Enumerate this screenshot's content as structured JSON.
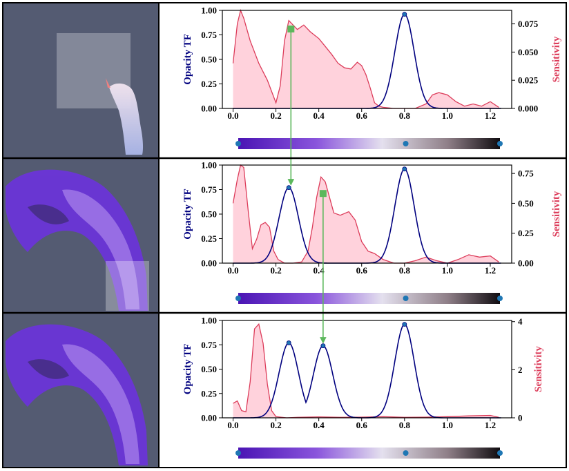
{
  "colors": {
    "opacity": "#00007f",
    "sensitivity": "#dc3c5a",
    "sensitivity_fill": "#ffd2dc",
    "arrow": "#5cb85c",
    "point": "#1f77b4",
    "render_bg": "#545b72"
  },
  "left_panel_icons": [
    "render-smoke-plume-top",
    "render-smoke-plume-middle",
    "render-smoke-plume-bottom"
  ],
  "chart_data": [
    {
      "type": "line",
      "x_ticks": [
        "0.0",
        "0.2",
        "0.4",
        "0.6",
        "0.8",
        "1.0",
        "1.2"
      ],
      "xlim": [
        -0.05,
        1.3
      ],
      "ylabel": "Opacity TF",
      "y_ticks": [
        "0.00",
        "0.25",
        "0.50",
        "0.75",
        "1.00"
      ],
      "ylim": [
        0,
        1
      ],
      "ylabel2": "Sensitivity",
      "y2_ticks": [
        "0.000",
        "0.025",
        "0.050",
        "0.075"
      ],
      "y2_tick_values": [
        0,
        0.025,
        0.05,
        0.075
      ],
      "y2lim": [
        0,
        0.087
      ],
      "opacity_peaks": [
        {
          "center": 0.8,
          "height": 0.96,
          "width": 0.045
        }
      ],
      "control_points": [
        {
          "x": 0.8,
          "y": 0.96
        }
      ],
      "sensitivity": {
        "x": [
          0.0,
          0.02,
          0.035,
          0.05,
          0.08,
          0.12,
          0.16,
          0.2,
          0.22,
          0.24,
          0.26,
          0.28,
          0.3,
          0.33,
          0.36,
          0.4,
          0.43,
          0.46,
          0.49,
          0.52,
          0.55,
          0.58,
          0.6,
          0.62,
          0.64,
          0.66,
          0.68,
          0.7,
          0.75,
          0.8,
          0.85,
          0.9,
          0.93,
          0.96,
          1.0,
          1.04,
          1.08,
          1.12,
          1.16,
          1.2,
          1.24
        ],
        "y": [
          0.04,
          0.075,
          0.087,
          0.08,
          0.06,
          0.04,
          0.025,
          0.005,
          0.02,
          0.06,
          0.078,
          0.074,
          0.07,
          0.074,
          0.068,
          0.062,
          0.055,
          0.048,
          0.04,
          0.036,
          0.035,
          0.041,
          0.038,
          0.03,
          0.018,
          0.005,
          0.002,
          0.001,
          0.0,
          0.0,
          0.0,
          0.004,
          0.012,
          0.014,
          0.012,
          0.006,
          0.002,
          0.004,
          0.002,
          0.006,
          0.001
        ]
      },
      "colorbar_points": [
        0.0,
        0.8,
        1.25
      ]
    },
    {
      "type": "line",
      "x_ticks": [
        "0.0",
        "0.2",
        "0.4",
        "0.6",
        "0.8",
        "1.0",
        "1.2"
      ],
      "xlim": [
        -0.05,
        1.3
      ],
      "ylabel": "Opacity TF",
      "y_ticks": [
        "0.00",
        "0.25",
        "0.50",
        "0.75",
        "1.00"
      ],
      "ylim": [
        0,
        1
      ],
      "ylabel2": "Sensitivity",
      "y2_ticks": [
        "0.00",
        "0.25",
        "0.50",
        "0.75"
      ],
      "y2_tick_values": [
        0,
        0.25,
        0.5,
        0.75
      ],
      "y2lim": [
        0,
        0.82
      ],
      "opacity_peaks": [
        {
          "center": 0.26,
          "height": 0.77,
          "width": 0.045
        },
        {
          "center": 0.8,
          "height": 0.96,
          "width": 0.045
        }
      ],
      "control_points": [
        {
          "x": 0.26,
          "y": 0.77
        },
        {
          "x": 0.8,
          "y": 0.96
        }
      ],
      "sensitivity": {
        "x": [
          0.0,
          0.02,
          0.035,
          0.05,
          0.07,
          0.09,
          0.11,
          0.13,
          0.15,
          0.17,
          0.19,
          0.21,
          0.24,
          0.28,
          0.32,
          0.35,
          0.37,
          0.39,
          0.41,
          0.43,
          0.45,
          0.47,
          0.5,
          0.54,
          0.57,
          0.6,
          0.63,
          0.66,
          0.7,
          0.75,
          0.8,
          0.85,
          0.9,
          0.95,
          1.0,
          1.05,
          1.1,
          1.15,
          1.2,
          1.24
        ],
        "y": [
          0.5,
          0.7,
          0.82,
          0.8,
          0.45,
          0.12,
          0.2,
          0.32,
          0.34,
          0.3,
          0.1,
          0.03,
          0.0,
          0.0,
          0.01,
          0.1,
          0.3,
          0.55,
          0.72,
          0.68,
          0.55,
          0.42,
          0.4,
          0.43,
          0.36,
          0.18,
          0.1,
          0.08,
          0.03,
          0.0,
          0.0,
          0.02,
          0.05,
          0.02,
          0.0,
          0.03,
          0.07,
          0.05,
          0.06,
          0.01
        ]
      },
      "colorbar_points": [
        0.0,
        0.8,
        1.25
      ]
    },
    {
      "type": "line",
      "x_ticks": [
        "0.0",
        "0.2",
        "0.4",
        "0.6",
        "0.8",
        "1.0",
        "1.2"
      ],
      "xlim": [
        -0.05,
        1.3
      ],
      "ylabel": "Opacity TF",
      "y_ticks": [
        "0.00",
        "0.25",
        "0.50",
        "0.75",
        "1.00"
      ],
      "ylim": [
        0,
        1
      ],
      "ylabel2": "Sensitivity",
      "y2_ticks": [
        "0",
        "2",
        "4"
      ],
      "y2_tick_values": [
        0,
        2,
        4
      ],
      "y2lim": [
        0,
        4.05
      ],
      "opacity_peaks": [
        {
          "center": 0.26,
          "height": 0.77,
          "width": 0.045
        },
        {
          "center": 0.42,
          "height": 0.74,
          "width": 0.045
        },
        {
          "center": 0.8,
          "height": 0.96,
          "width": 0.045
        }
      ],
      "control_points": [
        {
          "x": 0.26,
          "y": 0.77
        },
        {
          "x": 0.42,
          "y": 0.74
        },
        {
          "x": 0.8,
          "y": 0.96
        }
      ],
      "sensitivity": {
        "x": [
          0.0,
          0.02,
          0.04,
          0.06,
          0.08,
          0.1,
          0.12,
          0.14,
          0.16,
          0.18,
          0.2,
          0.25,
          0.3,
          0.4,
          0.5,
          0.6,
          0.7,
          0.8,
          0.9,
          1.0,
          1.1,
          1.2,
          1.24
        ],
        "y": [
          0.6,
          0.7,
          0.3,
          0.25,
          1.5,
          3.7,
          3.9,
          3.1,
          1.4,
          0.3,
          0.05,
          0.0,
          0.02,
          0.04,
          0.02,
          0.03,
          0.05,
          0.02,
          0.03,
          0.05,
          0.08,
          0.1,
          0.02
        ]
      },
      "colorbar_points": [
        0.0,
        0.8,
        1.25
      ]
    }
  ]
}
